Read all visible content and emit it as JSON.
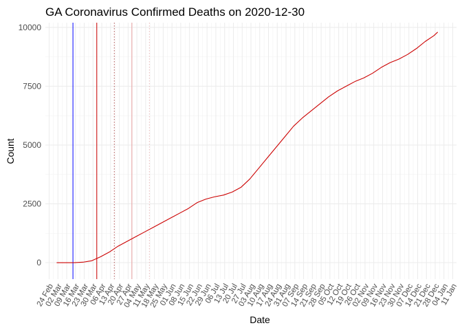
{
  "chart_data": {
    "type": "line",
    "title": "GA Coronavirus Confirmed Deaths on 2020-12-30",
    "xlabel": "Date",
    "ylabel": "Count",
    "xlim": [
      "2020-02-21",
      "2021-01-14"
    ],
    "ylim": [
      -700,
      10200
    ],
    "grid": true,
    "legend": "none",
    "yticks": [
      0,
      2500,
      5000,
      7500,
      10000
    ],
    "ytick_labels": [
      "0",
      "2500",
      "5000",
      "7500",
      "10000"
    ],
    "xticks": [
      "2020-02-24",
      "2020-03-02",
      "2020-03-09",
      "2020-03-16",
      "2020-03-23",
      "2020-03-30",
      "2020-04-06",
      "2020-04-13",
      "2020-04-20",
      "2020-04-27",
      "2020-05-04",
      "2020-05-11",
      "2020-05-18",
      "2020-05-25",
      "2020-06-01",
      "2020-06-08",
      "2020-06-15",
      "2020-06-22",
      "2020-06-29",
      "2020-07-06",
      "2020-07-13",
      "2020-07-20",
      "2020-07-27",
      "2020-08-03",
      "2020-08-10",
      "2020-08-17",
      "2020-08-24",
      "2020-08-31",
      "2020-09-07",
      "2020-09-14",
      "2020-09-21",
      "2020-09-28",
      "2020-10-05",
      "2020-10-12",
      "2020-10-19",
      "2020-10-26",
      "2020-11-02",
      "2020-11-09",
      "2020-11-16",
      "2020-11-23",
      "2020-11-30",
      "2020-12-07",
      "2020-12-14",
      "2020-12-21",
      "2020-12-28",
      "2021-01-04",
      "2021-01-11"
    ],
    "xtick_labels": [
      "24 Feb",
      "02 Mar",
      "09 Mar",
      "16 Mar",
      "23 Mar",
      "30 Mar",
      "06 Apr",
      "13 Apr",
      "20 Apr",
      "27 Apr",
      "04 May",
      "11 May",
      "18 May",
      "25 May",
      "01 Jun",
      "08 Jun",
      "15 Jun",
      "22 Jun",
      "29 Jun",
      "06 Jul",
      "13 Jul",
      "20 Jul",
      "27 Jul",
      "03 Aug",
      "10 Aug",
      "17 Aug",
      "24 Aug",
      "31 Aug",
      "07 Sep",
      "14 Sep",
      "21 Sep",
      "28 Sep",
      "05 Oct",
      "12 Oct",
      "19 Oct",
      "26 Oct",
      "02 Nov",
      "09 Nov",
      "16 Nov",
      "23 Nov",
      "30 Nov",
      "07 Dec",
      "14 Dec",
      "21 Dec",
      "28 Dec",
      "04 Jan",
      "11 Jan"
    ],
    "vlines": [
      {
        "x": "2020-03-14",
        "color": "#0000ff",
        "style": "solid"
      },
      {
        "x": "2020-04-02",
        "color": "#cc0000",
        "style": "solid"
      },
      {
        "x": "2020-04-16",
        "color": "#b05050",
        "style": "dotted"
      },
      {
        "x": "2020-04-30",
        "color": "#e8a0a0",
        "style": "solid"
      },
      {
        "x": "2020-05-14",
        "color": "#e8b8b8",
        "style": "dotted"
      }
    ],
    "series": [
      {
        "color": "#cc0000",
        "points": [
          [
            "2020-03-01",
            0
          ],
          [
            "2020-03-15",
            0
          ],
          [
            "2020-03-22",
            20
          ],
          [
            "2020-03-29",
            80
          ],
          [
            "2020-04-05",
            250
          ],
          [
            "2020-04-12",
            450
          ],
          [
            "2020-04-19",
            700
          ],
          [
            "2020-04-26",
            900
          ],
          [
            "2020-05-03",
            1100
          ],
          [
            "2020-05-10",
            1300
          ],
          [
            "2020-05-17",
            1500
          ],
          [
            "2020-05-24",
            1700
          ],
          [
            "2020-05-31",
            1900
          ],
          [
            "2020-06-07",
            2100
          ],
          [
            "2020-06-14",
            2300
          ],
          [
            "2020-06-21",
            2550
          ],
          [
            "2020-06-28",
            2700
          ],
          [
            "2020-07-05",
            2800
          ],
          [
            "2020-07-12",
            2870
          ],
          [
            "2020-07-19",
            3000
          ],
          [
            "2020-07-26",
            3200
          ],
          [
            "2020-08-02",
            3550
          ],
          [
            "2020-08-09",
            4000
          ],
          [
            "2020-08-16",
            4450
          ],
          [
            "2020-08-23",
            4900
          ],
          [
            "2020-08-30",
            5350
          ],
          [
            "2020-09-06",
            5800
          ],
          [
            "2020-09-13",
            6150
          ],
          [
            "2020-09-20",
            6450
          ],
          [
            "2020-09-27",
            6750
          ],
          [
            "2020-10-04",
            7050
          ],
          [
            "2020-10-11",
            7300
          ],
          [
            "2020-10-18",
            7500
          ],
          [
            "2020-10-25",
            7700
          ],
          [
            "2020-11-01",
            7850
          ],
          [
            "2020-11-08",
            8050
          ],
          [
            "2020-11-15",
            8300
          ],
          [
            "2020-11-22",
            8500
          ],
          [
            "2020-11-29",
            8650
          ],
          [
            "2020-12-06",
            8850
          ],
          [
            "2020-12-13",
            9100
          ],
          [
            "2020-12-20",
            9400
          ],
          [
            "2020-12-27",
            9650
          ],
          [
            "2020-12-30",
            9800
          ]
        ]
      }
    ]
  }
}
